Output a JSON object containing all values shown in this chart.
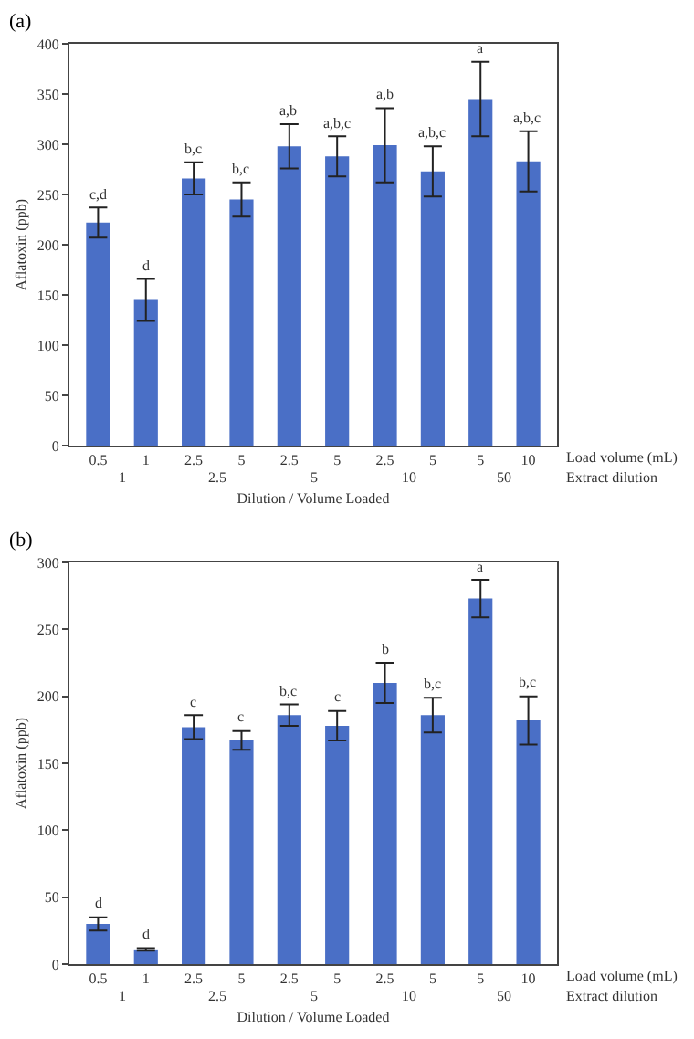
{
  "chart_data": [
    {
      "type": "bar",
      "title": "(a)",
      "xlabel": "Dilution / Volume Loaded",
      "ylabel": "Aflatoxin (ppb)",
      "categories": [
        "0.5",
        "1",
        "2.5",
        "5",
        "2.5",
        "5",
        "2.5",
        "5",
        "5",
        "10"
      ],
      "values": [
        222,
        145,
        266,
        245,
        298,
        288,
        299,
        273,
        345,
        283
      ],
      "errors": [
        15,
        21,
        16,
        17,
        22,
        20,
        37,
        25,
        37,
        30
      ],
      "value_labels": [
        "c,d",
        "d",
        "b,c",
        "b,c",
        "a,b",
        "a,b,c",
        "a,b",
        "a,b,c",
        "a",
        "a,b,c"
      ],
      "color": "#4a6fc6",
      "ylim": [
        0,
        400
      ],
      "yticks": [
        0,
        50,
        100,
        150,
        200,
        250,
        300,
        350,
        400
      ],
      "grid": false,
      "legend": false,
      "annotations": [
        "Load volume (mL)",
        "Extract dilution",
        "1",
        "2.5",
        "5",
        "10",
        "50"
      ]
    },
    {
      "type": "bar",
      "title": "(b)",
      "xlabel": "Dilution / Volume Loaded",
      "ylabel": "Aflatoxin (ppb)",
      "categories": [
        "0.5",
        "1",
        "2.5",
        "5",
        "2.5",
        "5",
        "2.5",
        "5",
        "5",
        "10"
      ],
      "values": [
        30,
        11,
        177,
        167,
        186,
        178,
        210,
        186,
        273,
        182
      ],
      "errors": [
        5,
        1,
        9,
        7,
        8,
        11,
        15,
        13,
        14,
        18
      ],
      "value_labels": [
        "d",
        "d",
        "c",
        "c",
        "b,c",
        "c",
        "b",
        "b,c",
        "a",
        "b,c"
      ],
      "color": "#4a6fc6",
      "ylim": [
        0,
        300
      ],
      "yticks": [
        0,
        50,
        100,
        150,
        200,
        250,
        300
      ],
      "grid": false,
      "legend": false,
      "annotations": [
        "Load volume (mL)",
        "Extract dilution",
        "1",
        "2.5",
        "5",
        "10",
        "50"
      ]
    }
  ]
}
